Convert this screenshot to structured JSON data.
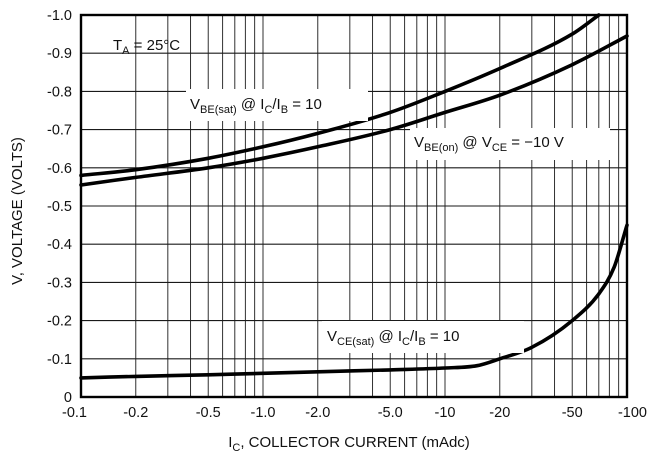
{
  "chart_data": {
    "type": "line",
    "xscale": "log",
    "xlim": [
      -0.1,
      -100
    ],
    "ylim": [
      0,
      -1.0
    ],
    "grid": true,
    "xlabel": {
      "main": "I",
      "sub": "C",
      "rest": ", COLLECTOR CURRENT (mAdc)"
    },
    "ylabel": "V, VOLTAGE (VOLTS)",
    "x_ticks": [
      {
        "value": -0.1,
        "label": "-0.1"
      },
      {
        "value": -0.2,
        "label": "-0.2"
      },
      {
        "value": -0.5,
        "label": "-0.5"
      },
      {
        "value": -1.0,
        "label": "-1.0"
      },
      {
        "value": -2.0,
        "label": "-2.0"
      },
      {
        "value": -5.0,
        "label": "-5.0"
      },
      {
        "value": -10,
        "label": "-10"
      },
      {
        "value": -20,
        "label": "-20"
      },
      {
        "value": -50,
        "label": "-50"
      },
      {
        "value": -100,
        "label": "-100"
      }
    ],
    "y_ticks": [
      {
        "value": 0,
        "label": "0"
      },
      {
        "value": -0.1,
        "label": "-0.1"
      },
      {
        "value": -0.2,
        "label": "-0.2"
      },
      {
        "value": -0.3,
        "label": "-0.3"
      },
      {
        "value": -0.4,
        "label": "-0.4"
      },
      {
        "value": -0.5,
        "label": "-0.5"
      },
      {
        "value": -0.6,
        "label": "-0.6"
      },
      {
        "value": -0.7,
        "label": "-0.7"
      },
      {
        "value": -0.8,
        "label": "-0.8"
      },
      {
        "value": -0.9,
        "label": "-0.9"
      },
      {
        "value": -1.0,
        "label": "-1.0"
      }
    ],
    "condition": {
      "main": "T",
      "sub": "A",
      "rest": " = 25°C"
    },
    "series": [
      {
        "label": [
          [
            "V",
            ""
          ],
          [
            "BE(sat)",
            "sub"
          ],
          [
            " @ I",
            ""
          ],
          [
            "C",
            "sub"
          ],
          [
            "/I",
            ""
          ],
          [
            "B",
            "sub"
          ],
          [
            " = 10",
            ""
          ]
        ],
        "x": [
          -0.1,
          -0.2,
          -0.5,
          -1.0,
          -2.0,
          -5.0,
          -10,
          -20,
          -50,
          -70
        ],
        "y": [
          -0.58,
          -0.595,
          -0.625,
          -0.655,
          -0.69,
          -0.745,
          -0.8,
          -0.86,
          -0.95,
          -1.0
        ]
      },
      {
        "label": [
          [
            "V",
            ""
          ],
          [
            "BE(on)",
            "sub"
          ],
          [
            " @ V",
            ""
          ],
          [
            "CE",
            "sub"
          ],
          [
            " = −10 V",
            ""
          ]
        ],
        "x": [
          -0.1,
          -0.2,
          -0.5,
          -1.0,
          -2.0,
          -5.0,
          -10,
          -20,
          -50,
          -100
        ],
        "y": [
          -0.555,
          -0.575,
          -0.6,
          -0.625,
          -0.655,
          -0.7,
          -0.745,
          -0.79,
          -0.87,
          -0.945
        ]
      },
      {
        "label": [
          [
            "V",
            ""
          ],
          [
            "CE(sat)",
            "sub"
          ],
          [
            " @ I",
            ""
          ],
          [
            "C",
            "sub"
          ],
          [
            "/I",
            ""
          ],
          [
            "B",
            "sub"
          ],
          [
            " = 10",
            ""
          ]
        ],
        "x": [
          -0.1,
          -0.2,
          -0.5,
          -1.0,
          -2.0,
          -5.0,
          -10,
          -15,
          -20,
          -30,
          -50,
          -70,
          -85,
          -100
        ],
        "y": [
          -0.05,
          -0.054,
          -0.058,
          -0.062,
          -0.066,
          -0.071,
          -0.076,
          -0.082,
          -0.1,
          -0.13,
          -0.2,
          -0.27,
          -0.34,
          -0.45
        ]
      }
    ]
  }
}
